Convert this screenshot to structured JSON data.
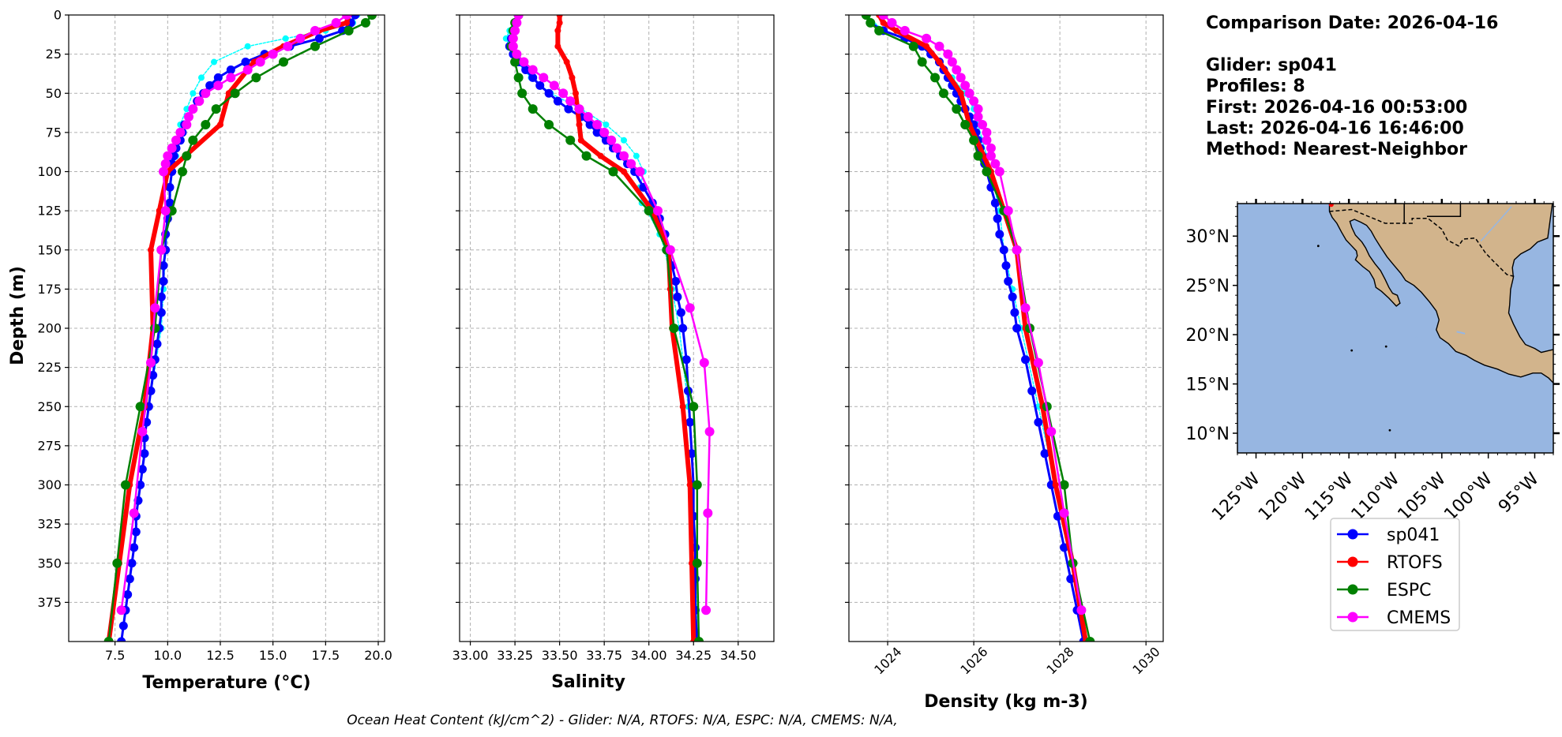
{
  "info": {
    "lines": [
      "Comparison Date: 2026-04-16",
      "",
      "Glider: sp041",
      "Profiles: 8",
      "First: 2026-04-16 00:53:00",
      "Last: 2026-04-16 16:46:00",
      "Method: Nearest-Neighbor"
    ]
  },
  "footer": "Ocean Heat Content (kJ/cm^2) - Glider: N/A,  RTOFS: N/A,  ESPC: N/A,  CMEMS: N/A,",
  "colors": {
    "sp041": "#0000ff",
    "sp041_profiles": "#00ffff",
    "RTOFS": "#ff0000",
    "ESPC": "#008000",
    "CMEMS": "#ff00ff",
    "ocean": "#97b6e1",
    "land": "#d2b48c",
    "grid": "#b0b0b0"
  },
  "legend": [
    "sp041",
    "RTOFS",
    "ESPC",
    "CMEMS"
  ],
  "map": {
    "lon_labels": [
      "125°W",
      "120°W",
      "115°W",
      "110°W",
      "105°W",
      "100°W",
      "95°W"
    ],
    "lat_labels": [
      "30°N",
      "25°N",
      "20°N",
      "15°N",
      "10°N"
    ],
    "lon_range": [
      -127,
      -93
    ],
    "lat_range": [
      8,
      33.3
    ]
  },
  "chart_data": [
    {
      "type": "line",
      "xlabel": "Temperature ($^{o}C$)",
      "xlabel_display": "Temperature (°C)",
      "ylabel": "Depth (m)",
      "xlim": [
        5.3,
        20.3
      ],
      "ylim": [
        400,
        0
      ],
      "xticks": [
        "7.5",
        "10.0",
        "12.5",
        "15.0",
        "17.5",
        "20.0"
      ],
      "yticks": [
        "0",
        "25",
        "50",
        "75",
        "100",
        "125",
        "150",
        "175",
        "200",
        "225",
        "250",
        "275",
        "300",
        "325",
        "350",
        "375"
      ],
      "grid": true,
      "series": [
        {
          "name": "sp041_profiles",
          "depth": [
            0,
            5,
            10,
            15,
            20,
            30,
            40,
            50,
            60,
            70,
            80,
            90,
            100,
            125,
            150,
            175,
            200,
            250,
            300,
            350,
            400
          ],
          "values": [
            19.0,
            18.8,
            17.5,
            15.6,
            13.8,
            12.2,
            11.6,
            11.2,
            10.9,
            10.6,
            10.5,
            10.4,
            10.2,
            10.1,
            9.9,
            9.8,
            9.7,
            9.1,
            8.7,
            8.3,
            7.8
          ]
        },
        {
          "name": "sp041",
          "depth": [
            0,
            5,
            10,
            15,
            20,
            25,
            30,
            35,
            40,
            45,
            50,
            55,
            60,
            65,
            70,
            75,
            80,
            85,
            90,
            95,
            100,
            110,
            120,
            130,
            140,
            150,
            160,
            170,
            180,
            190,
            200,
            210,
            220,
            230,
            240,
            250,
            260,
            270,
            280,
            290,
            300,
            310,
            320,
            330,
            340,
            350,
            360,
            370,
            380,
            390,
            400
          ],
          "values": [
            18.9,
            18.7,
            18.3,
            17.2,
            15.8,
            14.6,
            13.7,
            13.0,
            12.4,
            12.0,
            11.7,
            11.4,
            11.2,
            11.0,
            10.8,
            10.7,
            10.6,
            10.4,
            10.3,
            10.2,
            10.2,
            10.1,
            10.1,
            10.0,
            9.9,
            9.9,
            9.8,
            9.8,
            9.7,
            9.7,
            9.6,
            9.5,
            9.4,
            9.3,
            9.2,
            9.1,
            9.0,
            8.9,
            8.9,
            8.8,
            8.7,
            8.6,
            8.5,
            8.5,
            8.4,
            8.3,
            8.2,
            8.1,
            8.0,
            7.9,
            7.8
          ]
        },
        {
          "name": "RTOFS",
          "depth": [
            0,
            5,
            10,
            20,
            30,
            50,
            70,
            100,
            125,
            150,
            200,
            250,
            300,
            350,
            400
          ],
          "values": [
            18.6,
            18.5,
            17.2,
            15.5,
            14.1,
            12.9,
            12.5,
            10.0,
            9.6,
            9.2,
            9.3,
            8.9,
            8.2,
            7.7,
            7.2
          ]
        },
        {
          "name": "ESPC",
          "depth": [
            0,
            5,
            10,
            20,
            30,
            40,
            50,
            60,
            70,
            80,
            90,
            100,
            125,
            150,
            200,
            250,
            300,
            350,
            400
          ],
          "values": [
            19.7,
            19.4,
            18.6,
            17.0,
            15.5,
            14.2,
            13.2,
            12.3,
            11.8,
            11.2,
            10.9,
            10.7,
            10.2,
            9.7,
            9.4,
            8.7,
            8.0,
            7.6,
            7.2
          ]
        },
        {
          "name": "CMEMS",
          "depth": [
            0,
            5,
            10,
            15,
            20,
            25,
            30,
            35,
            40,
            45,
            50,
            55,
            60,
            65,
            70,
            75,
            80,
            85,
            90,
            95,
            100,
            125,
            150,
            187,
            222,
            266,
            318,
            380
          ],
          "values": [
            18.5,
            18.0,
            17.0,
            16.3,
            15.7,
            15.0,
            14.4,
            13.8,
            13.0,
            12.4,
            11.8,
            11.5,
            11.2,
            11.0,
            10.9,
            10.6,
            10.4,
            10.2,
            10.0,
            9.9,
            9.8,
            9.9,
            9.7,
            9.4,
            9.2,
            8.8,
            8.4,
            7.8
          ]
        }
      ]
    },
    {
      "type": "line",
      "xlabel": "Salinity",
      "xlim": [
        32.94,
        34.7
      ],
      "ylim": [
        400,
        0
      ],
      "xticks": [
        "33.00",
        "33.25",
        "33.50",
        "33.75",
        "34.00",
        "34.25",
        "34.50"
      ],
      "grid": true,
      "series": [
        {
          "name": "sp041_profiles",
          "depth": [
            0,
            10,
            15,
            20,
            30,
            40,
            50,
            60,
            70,
            80,
            90,
            100,
            110,
            120,
            125,
            140,
            150,
            175,
            200,
            250,
            300,
            350,
            400
          ],
          "values": [
            33.26,
            33.22,
            33.2,
            33.22,
            33.26,
            33.34,
            33.45,
            33.62,
            33.76,
            33.86,
            33.93,
            33.97,
            33.95,
            33.96,
            33.99,
            34.06,
            34.09,
            34.13,
            34.17,
            34.22,
            34.25,
            34.26,
            34.27
          ]
        },
        {
          "name": "sp041",
          "depth": [
            0,
            5,
            10,
            15,
            20,
            25,
            30,
            35,
            40,
            45,
            50,
            55,
            60,
            65,
            70,
            75,
            80,
            85,
            90,
            95,
            100,
            110,
            120,
            130,
            140,
            150,
            160,
            170,
            180,
            190,
            200,
            220,
            240,
            260,
            280,
            300,
            320,
            340,
            360,
            380,
            400
          ],
          "values": [
            33.27,
            33.26,
            33.25,
            33.23,
            33.22,
            33.24,
            33.27,
            33.31,
            33.35,
            33.39,
            33.44,
            33.49,
            33.55,
            33.62,
            33.67,
            33.71,
            33.76,
            33.8,
            33.84,
            33.88,
            33.92,
            33.97,
            34.02,
            34.06,
            34.09,
            34.11,
            34.13,
            34.15,
            34.16,
            34.18,
            34.19,
            34.21,
            34.22,
            34.23,
            34.24,
            34.25,
            34.25,
            34.26,
            34.26,
            34.26,
            34.27
          ]
        },
        {
          "name": "RTOFS",
          "depth": [
            0,
            5,
            10,
            20,
            30,
            40,
            50,
            60,
            70,
            80,
            90,
            100,
            125,
            150,
            175,
            200,
            250,
            300,
            350,
            400
          ],
          "values": [
            33.5,
            33.5,
            33.49,
            33.49,
            33.54,
            33.57,
            33.59,
            33.6,
            33.61,
            33.62,
            33.73,
            33.86,
            34.02,
            34.11,
            34.12,
            34.13,
            34.19,
            34.23,
            34.24,
            34.25
          ]
        },
        {
          "name": "ESPC",
          "depth": [
            0,
            5,
            10,
            20,
            30,
            40,
            50,
            60,
            70,
            80,
            90,
            100,
            125,
            150,
            200,
            250,
            300,
            350,
            400
          ],
          "values": [
            33.27,
            33.25,
            33.24,
            33.23,
            33.25,
            33.27,
            33.29,
            33.35,
            33.44,
            33.56,
            33.65,
            33.8,
            34.0,
            34.1,
            34.14,
            34.25,
            34.27,
            34.27,
            34.28
          ]
        },
        {
          "name": "CMEMS",
          "depth": [
            0,
            5,
            10,
            15,
            20,
            25,
            30,
            35,
            40,
            45,
            50,
            55,
            60,
            65,
            70,
            75,
            80,
            85,
            90,
            95,
            100,
            125,
            150,
            187,
            222,
            266,
            318,
            380
          ],
          "values": [
            33.27,
            33.26,
            33.25,
            33.24,
            33.24,
            33.26,
            33.3,
            33.35,
            33.41,
            33.47,
            33.52,
            33.56,
            33.61,
            33.66,
            33.71,
            33.75,
            33.79,
            33.82,
            33.86,
            33.9,
            33.95,
            34.05,
            34.12,
            34.23,
            34.31,
            34.34,
            34.33,
            34.32
          ]
        }
      ]
    },
    {
      "type": "line",
      "xlabel": "Density (kg m-3)",
      "xlim": [
        1023.1,
        1030.4
      ],
      "ylim": [
        400,
        0
      ],
      "xticks": [
        "1024",
        "1026",
        "1028",
        "1030"
      ],
      "grid": true,
      "series": [
        {
          "name": "sp041_profiles",
          "depth": [
            0,
            10,
            20,
            30,
            40,
            50,
            60,
            70,
            80,
            90,
            100,
            125,
            150,
            175,
            200,
            250,
            300,
            350,
            400
          ],
          "values": [
            1023.5,
            1023.9,
            1024.8,
            1025.2,
            1025.5,
            1025.8,
            1026.0,
            1026.1,
            1026.2,
            1026.3,
            1026.4,
            1026.6,
            1026.7,
            1026.9,
            1027.1,
            1027.5,
            1027.9,
            1028.3,
            1028.6
          ]
        },
        {
          "name": "sp041",
          "depth": [
            0,
            5,
            10,
            15,
            20,
            25,
            30,
            35,
            40,
            45,
            50,
            55,
            60,
            65,
            70,
            75,
            80,
            85,
            90,
            95,
            100,
            110,
            120,
            130,
            140,
            150,
            160,
            170,
            180,
            190,
            200,
            220,
            240,
            260,
            280,
            300,
            320,
            340,
            360,
            380,
            400
          ],
          "values": [
            1023.5,
            1023.6,
            1023.9,
            1024.4,
            1024.8,
            1025.0,
            1025.2,
            1025.3,
            1025.4,
            1025.5,
            1025.6,
            1025.7,
            1025.8,
            1025.9,
            1026.0,
            1026.05,
            1026.1,
            1026.15,
            1026.2,
            1026.25,
            1026.3,
            1026.4,
            1026.5,
            1026.55,
            1026.6,
            1026.7,
            1026.75,
            1026.8,
            1026.9,
            1026.95,
            1027.0,
            1027.2,
            1027.35,
            1027.5,
            1027.65,
            1027.8,
            1027.95,
            1028.1,
            1028.25,
            1028.4,
            1028.55
          ]
        },
        {
          "name": "RTOFS",
          "depth": [
            0,
            5,
            10,
            20,
            30,
            50,
            70,
            100,
            125,
            150,
            200,
            250,
            300,
            350,
            400
          ],
          "values": [
            1023.8,
            1023.9,
            1024.2,
            1024.9,
            1025.2,
            1025.7,
            1025.9,
            1026.4,
            1026.7,
            1027.0,
            1027.2,
            1027.6,
            1027.9,
            1028.3,
            1028.6
          ]
        },
        {
          "name": "ESPC",
          "depth": [
            0,
            5,
            10,
            20,
            30,
            40,
            50,
            60,
            70,
            80,
            90,
            100,
            125,
            150,
            200,
            250,
            300,
            350,
            400
          ],
          "values": [
            1023.5,
            1023.6,
            1023.8,
            1024.6,
            1024.8,
            1025.1,
            1025.3,
            1025.6,
            1025.8,
            1026.0,
            1026.1,
            1026.3,
            1026.7,
            1027.0,
            1027.3,
            1027.7,
            1028.1,
            1028.3,
            1028.7
          ]
        },
        {
          "name": "CMEMS",
          "depth": [
            0,
            5,
            10,
            15,
            20,
            25,
            30,
            35,
            40,
            45,
            50,
            55,
            60,
            65,
            70,
            75,
            80,
            85,
            90,
            95,
            100,
            125,
            150,
            187,
            222,
            266,
            318,
            380
          ],
          "values": [
            1023.9,
            1024.1,
            1024.4,
            1024.9,
            1025.2,
            1025.4,
            1025.5,
            1025.6,
            1025.7,
            1025.8,
            1025.9,
            1026.0,
            1026.1,
            1026.1,
            1026.2,
            1026.3,
            1026.3,
            1026.4,
            1026.4,
            1026.5,
            1026.6,
            1026.8,
            1027.0,
            1027.2,
            1027.5,
            1027.8,
            1028.1,
            1028.5
          ]
        }
      ]
    }
  ]
}
